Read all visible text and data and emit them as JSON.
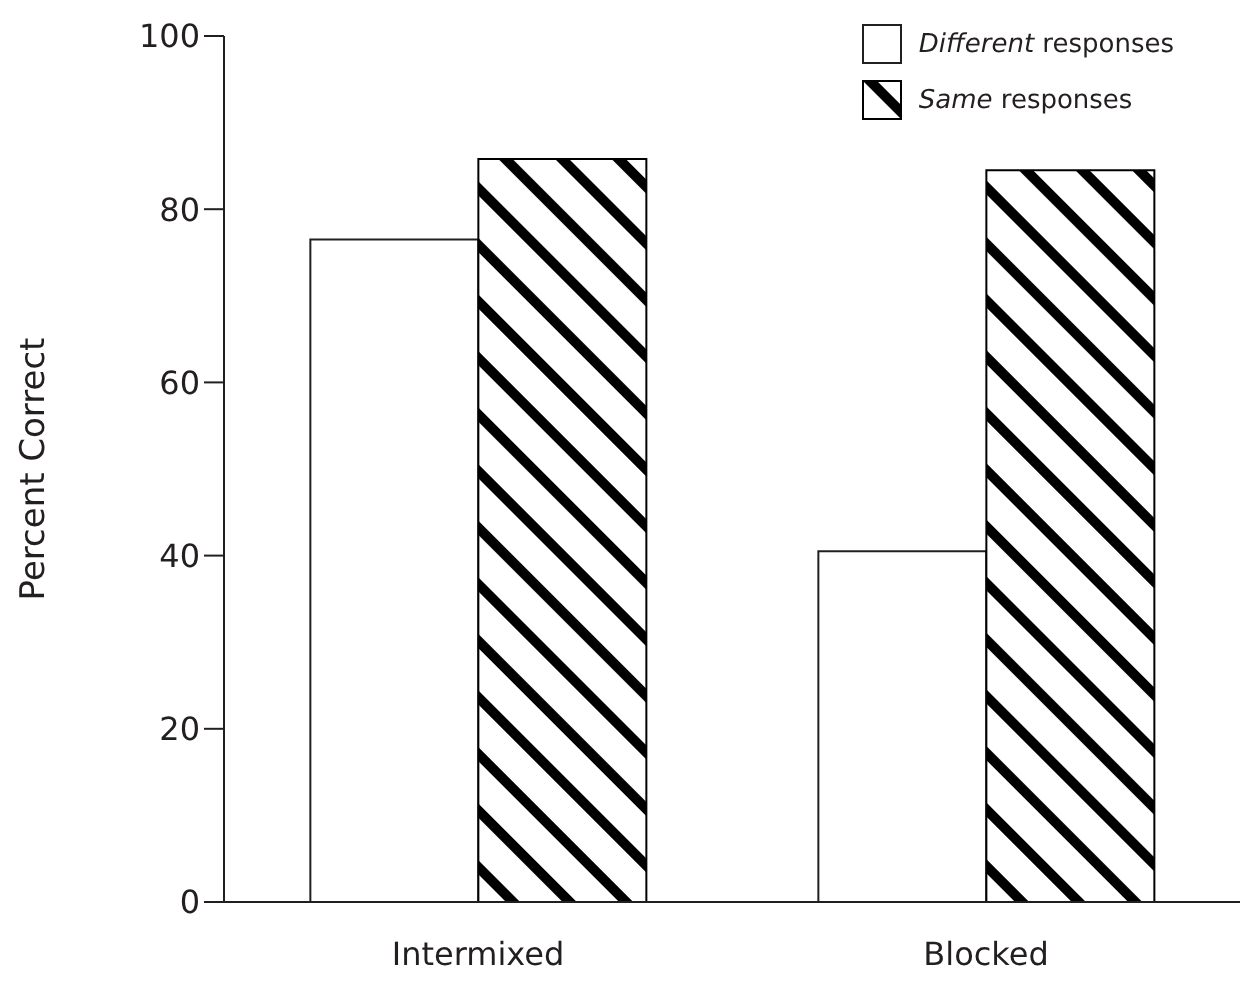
{
  "chart_data": {
    "type": "bar",
    "ylabel": "Percent Correct",
    "categories": [
      "Intermixed",
      "Blocked"
    ],
    "series": [
      {
        "name": "Different responses",
        "color": "#ffffff",
        "values": [
          76.5,
          40.5
        ]
      },
      {
        "name": "Same responses",
        "color": "#000000",
        "values": [
          85.8,
          84.5
        ]
      }
    ],
    "ylim": [
      0,
      100
    ],
    "yticks": [
      0,
      20,
      40,
      60,
      80,
      100
    ],
    "legend": "top right"
  }
}
